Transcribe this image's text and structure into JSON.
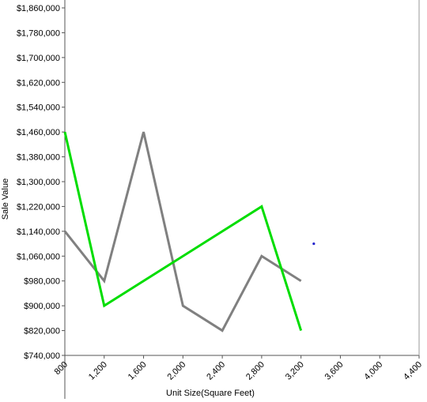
{
  "chart_data": {
    "type": "line",
    "xlabel": "Unit Size(Square Feet)",
    "ylabel": "Sale Value",
    "xlim": [
      800,
      4400
    ],
    "ylim": [
      740000,
      1860000
    ],
    "x_ticks": [
      800,
      1200,
      1600,
      2000,
      2400,
      2800,
      3200,
      3600,
      4000,
      4400
    ],
    "x_tick_labels": [
      "800",
      "1,200",
      "1,600",
      "2,000",
      "2,400",
      "2,800",
      "3,200",
      "3,600",
      "4,000",
      "4,400"
    ],
    "y_ticks": [
      740000,
      820000,
      900000,
      980000,
      1060000,
      1140000,
      1220000,
      1300000,
      1380000,
      1460000,
      1540000,
      1620000,
      1700000,
      1780000,
      1860000
    ],
    "y_tick_labels": [
      "$740,000",
      "$820,000",
      "$900,000",
      "$980,000",
      "$1,060,000",
      "$1,140,000",
      "$1,220,000",
      "$1,300,000",
      "$1,380,000",
      "$1,460,000",
      "$1,540,000",
      "$1,620,000",
      "$1,700,000",
      "$1,780,000",
      "$1,860,000"
    ],
    "grid": false,
    "legend": "none",
    "series": [
      {
        "color": "#808080",
        "points": [
          [
            800,
            1140000
          ],
          [
            1200,
            980000
          ],
          [
            1600,
            1460000
          ],
          [
            2000,
            900000
          ],
          [
            2400,
            820000
          ],
          [
            2800,
            1060000
          ],
          [
            3200,
            980000
          ]
        ]
      },
      {
        "color": "#00dd00",
        "points": [
          [
            800,
            1460000
          ],
          [
            1200,
            900000
          ],
          [
            2800,
            1220000
          ],
          [
            3200,
            820000
          ]
        ]
      }
    ],
    "markers": [
      {
        "x": 3330,
        "y": 1100000,
        "color": "#2222cc"
      }
    ]
  }
}
